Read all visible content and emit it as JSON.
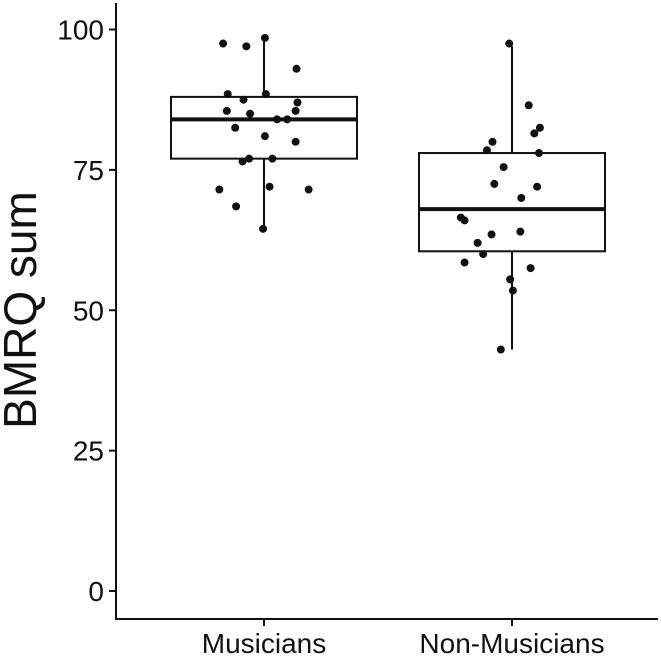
{
  "chart_data": {
    "type": "boxplot",
    "title": "",
    "xlabel": "",
    "ylabel": "BMRQ sum",
    "ylim": [
      0,
      100
    ],
    "yticks": [
      0,
      25,
      50,
      75,
      100
    ],
    "categories": [
      "Musicians",
      "Non-Musicians"
    ],
    "grid": false,
    "legend": "none",
    "colors": {
      "box_fill": "#ffffff",
      "stroke": "#111111",
      "points": "#111111"
    },
    "boxes": [
      {
        "category": "Musicians",
        "min": 64,
        "q1": 77,
        "median": 84,
        "q3": 88,
        "max": 98
      },
      {
        "category": "Non-Musicians",
        "min": 43,
        "q1": 60.5,
        "median": 68,
        "q3": 78,
        "max": 97
      }
    ],
    "points": [
      {
        "category": "Musicians",
        "jitter": -0.44,
        "y": 97.5
      },
      {
        "category": "Musicians",
        "jitter": -0.19,
        "y": 97
      },
      {
        "category": "Musicians",
        "jitter": 0.01,
        "y": 98.5
      },
      {
        "category": "Musicians",
        "jitter": 0.35,
        "y": 93
      },
      {
        "category": "Musicians",
        "jitter": -0.39,
        "y": 88.5
      },
      {
        "category": "Musicians",
        "jitter": -0.22,
        "y": 87.5
      },
      {
        "category": "Musicians",
        "jitter": 0.02,
        "y": 88.5
      },
      {
        "category": "Musicians",
        "jitter": 0.36,
        "y": 87
      },
      {
        "category": "Musicians",
        "jitter": -0.4,
        "y": 85.5
      },
      {
        "category": "Musicians",
        "jitter": -0.15,
        "y": 85
      },
      {
        "category": "Musicians",
        "jitter": 0.34,
        "y": 85.5
      },
      {
        "category": "Musicians",
        "jitter": 0.14,
        "y": 84
      },
      {
        "category": "Musicians",
        "jitter": 0.25,
        "y": 84
      },
      {
        "category": "Musicians",
        "jitter": -0.31,
        "y": 82.5
      },
      {
        "category": "Musicians",
        "jitter": 0.01,
        "y": 81
      },
      {
        "category": "Musicians",
        "jitter": 0.34,
        "y": 80
      },
      {
        "category": "Musicians",
        "jitter": -0.23,
        "y": 76.5
      },
      {
        "category": "Musicians",
        "jitter": -0.16,
        "y": 77
      },
      {
        "category": "Musicians",
        "jitter": 0.09,
        "y": 77
      },
      {
        "category": "Musicians",
        "jitter": -0.48,
        "y": 71.5
      },
      {
        "category": "Musicians",
        "jitter": 0.06,
        "y": 72
      },
      {
        "category": "Musicians",
        "jitter": 0.48,
        "y": 71.5
      },
      {
        "category": "Musicians",
        "jitter": -0.3,
        "y": 68.5
      },
      {
        "category": "Musicians",
        "jitter": -0.01,
        "y": 64.5
      },
      {
        "category": "Non-Musicians",
        "jitter": -0.03,
        "y": 97.5
      },
      {
        "category": "Non-Musicians",
        "jitter": 0.18,
        "y": 86.5
      },
      {
        "category": "Non-Musicians",
        "jitter": 0.3,
        "y": 82.5
      },
      {
        "category": "Non-Musicians",
        "jitter": 0.24,
        "y": 81.5
      },
      {
        "category": "Non-Musicians",
        "jitter": -0.21,
        "y": 80
      },
      {
        "category": "Non-Musicians",
        "jitter": -0.27,
        "y": 78.5
      },
      {
        "category": "Non-Musicians",
        "jitter": 0.29,
        "y": 78
      },
      {
        "category": "Non-Musicians",
        "jitter": -0.09,
        "y": 75.5
      },
      {
        "category": "Non-Musicians",
        "jitter": -0.19,
        "y": 72.5
      },
      {
        "category": "Non-Musicians",
        "jitter": 0.27,
        "y": 72
      },
      {
        "category": "Non-Musicians",
        "jitter": 0.1,
        "y": 70
      },
      {
        "category": "Non-Musicians",
        "jitter": -0.55,
        "y": 66.5
      },
      {
        "category": "Non-Musicians",
        "jitter": -0.51,
        "y": 66
      },
      {
        "category": "Non-Musicians",
        "jitter": 0.09,
        "y": 64
      },
      {
        "category": "Non-Musicians",
        "jitter": -0.22,
        "y": 63.5
      },
      {
        "category": "Non-Musicians",
        "jitter": -0.37,
        "y": 62
      },
      {
        "category": "Non-Musicians",
        "jitter": -0.31,
        "y": 60
      },
      {
        "category": "Non-Musicians",
        "jitter": -0.51,
        "y": 58.5
      },
      {
        "category": "Non-Musicians",
        "jitter": 0.2,
        "y": 57.5
      },
      {
        "category": "Non-Musicians",
        "jitter": -0.02,
        "y": 55.5
      },
      {
        "category": "Non-Musicians",
        "jitter": 0.01,
        "y": 53.5
      },
      {
        "category": "Non-Musicians",
        "jitter": -0.12,
        "y": 43
      }
    ]
  }
}
